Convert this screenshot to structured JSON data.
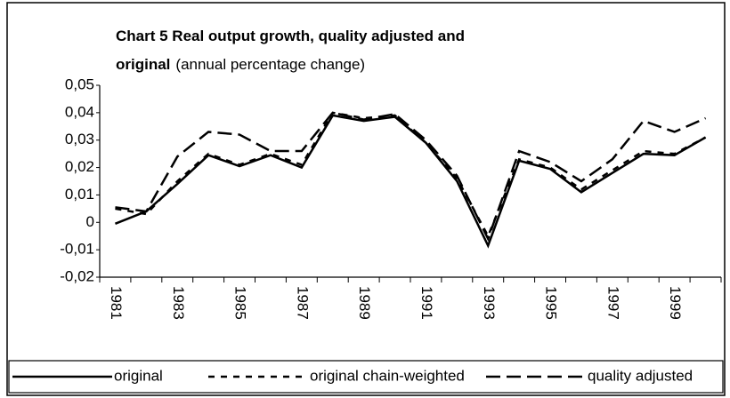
{
  "chart_data": {
    "type": "line",
    "title": "Chart 5  Real output growth, quality adjusted and original",
    "subtitle": "(annual percentage change)",
    "categories": [
      "1981",
      null,
      "1983",
      null,
      "1985",
      null,
      "1987",
      null,
      "1989",
      null,
      "1991",
      null,
      "1993",
      null,
      "1995",
      null,
      "1997",
      null,
      "1999",
      null
    ],
    "series": [
      {
        "name": "original",
        "color": "#000000",
        "dash": "none",
        "values": [
          -0.0005,
          0.004,
          0.014,
          0.0245,
          0.0205,
          0.0245,
          0.02,
          0.039,
          0.037,
          0.0385,
          0.029,
          0.015,
          -0.0085,
          0.0225,
          0.0195,
          0.011,
          0.018,
          0.025,
          0.0245,
          0.031
        ]
      },
      {
        "name": "original chain-weighted",
        "color": "#000000",
        "dash": "7,7",
        "values": [
          0.005,
          0.003,
          0.015,
          0.025,
          0.021,
          0.025,
          0.021,
          0.04,
          0.038,
          0.039,
          0.029,
          0.016,
          -0.005,
          0.023,
          0.02,
          0.012,
          0.019,
          0.026,
          0.025,
          0.031
        ]
      },
      {
        "name": "quality adjusted",
        "color": "#000000",
        "dash": "16,7",
        "values": [
          0.0055,
          0.004,
          0.024,
          0.033,
          0.032,
          0.026,
          0.026,
          0.04,
          0.0375,
          0.0395,
          0.03,
          0.017,
          -0.006,
          0.026,
          0.022,
          0.015,
          0.023,
          0.037,
          0.033,
          0.038
        ]
      }
    ],
    "ylim": [
      -0.02,
      0.05
    ],
    "yticks": [
      {
        "value": -0.02,
        "label": "-0,02"
      },
      {
        "value": -0.01,
        "label": "-0,01"
      },
      0,
      {
        "value": 0.01,
        "label": "0,01"
      },
      {
        "value": 0.02,
        "label": "0,02"
      },
      {
        "value": 0.03,
        "label": "0,03"
      },
      {
        "value": 0.04,
        "label": "0,04"
      },
      {
        "value": 0.05,
        "label": "0,05"
      }
    ],
    "grid": false,
    "legend": "bottom"
  }
}
